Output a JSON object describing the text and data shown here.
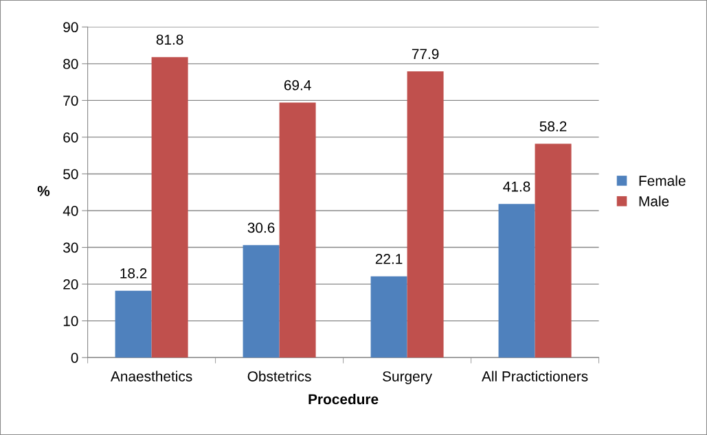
{
  "chart_data": {
    "type": "bar",
    "xlabel": "Procedure",
    "ylabel": "%",
    "categories": [
      "Anaesthetics",
      "Obstetrics",
      "Surgery",
      "All Practictioners"
    ],
    "series": [
      {
        "name": "Female",
        "color": "#4f81bd",
        "values": [
          18.2,
          30.6,
          22.1,
          41.8
        ]
      },
      {
        "name": "Male",
        "color": "#c0504d",
        "values": [
          81.8,
          69.4,
          77.9,
          58.2
        ]
      }
    ],
    "ylim": [
      0,
      90
    ],
    "yticks": [
      0,
      10,
      20,
      30,
      40,
      50,
      60,
      70,
      80,
      90
    ],
    "grid": "y",
    "legend": "right",
    "data_labels": true
  }
}
